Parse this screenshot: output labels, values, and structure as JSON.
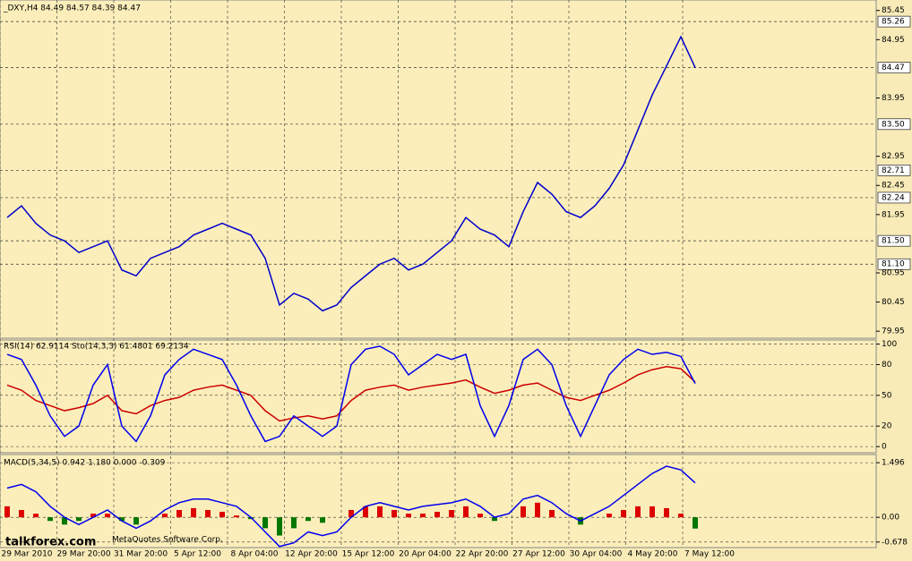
{
  "header": "_DXY,H4  84.49 84.57 84.39 84.47",
  "chart_data": [
    {
      "type": "line",
      "name": "price",
      "values": [
        81.9,
        82.1,
        81.8,
        81.6,
        81.5,
        81.3,
        81.4,
        81.5,
        81.0,
        80.9,
        81.2,
        81.3,
        81.4,
        81.6,
        81.7,
        81.8,
        81.7,
        81.6,
        81.2,
        80.4,
        80.6,
        80.5,
        80.3,
        80.4,
        80.7,
        80.9,
        81.1,
        81.2,
        81.0,
        81.1,
        81.3,
        81.5,
        81.9,
        81.7,
        81.6,
        81.4,
        82.0,
        82.5,
        82.3,
        82.0,
        81.9,
        82.1,
        82.4,
        82.8,
        83.4,
        84.0,
        84.5,
        85.0,
        84.47
      ],
      "color": "#0000cc",
      "ylim": [
        79.83,
        85.63
      ],
      "yticks": [
        85.45,
        84.95,
        83.95,
        82.95,
        82.45,
        81.95,
        80.95,
        80.45,
        79.95
      ],
      "level_lines": [
        85.26,
        84.47,
        {
          "value": 83.5,
          "label": "83.50"
        },
        82.71,
        82.24,
        {
          "value": 81.5,
          "label": "81.50"
        },
        {
          "value": 81.1,
          "label": "81.10"
        }
      ]
    },
    {
      "type": "line",
      "name": "oscillator",
      "title": "RSI(14) 62.9114  Sto(14,3,3) 61.4801 69.2134",
      "ylim": [
        -6,
        104
      ],
      "yticks": [
        100,
        80,
        50,
        20,
        0
      ],
      "series": [
        {
          "name": "RSI(14)",
          "color": "#cc0000",
          "values": [
            60,
            55,
            45,
            40,
            35,
            38,
            42,
            50,
            35,
            32,
            40,
            45,
            48,
            55,
            58,
            60,
            55,
            50,
            35,
            25,
            28,
            30,
            27,
            30,
            45,
            55,
            58,
            60,
            55,
            58,
            60,
            62,
            65,
            58,
            52,
            55,
            60,
            62,
            55,
            48,
            45,
            50,
            55,
            62,
            70,
            75,
            78,
            76,
            62.9
          ]
        },
        {
          "name": "Sto(14,3,3)",
          "color": "#0000ee",
          "values": [
            90,
            85,
            60,
            30,
            10,
            20,
            60,
            80,
            20,
            5,
            30,
            70,
            85,
            95,
            90,
            85,
            60,
            30,
            5,
            10,
            30,
            20,
            10,
            20,
            80,
            95,
            98,
            90,
            70,
            80,
            90,
            85,
            90,
            40,
            10,
            40,
            85,
            95,
            80,
            40,
            10,
            40,
            70,
            85,
            95,
            90,
            92,
            88,
            61.5
          ]
        }
      ]
    },
    {
      "type": "bar",
      "name": "macd",
      "title": "MACD(5,34,5) 0.942 1.180 0.000 -0.309",
      "ylim": [
        -0.83,
        1.72
      ],
      "yticks": [
        1.496,
        {
          "value": 0,
          "label": "0.00"
        },
        -0.678
      ],
      "values": [
        0.3,
        0.2,
        0.1,
        -0.1,
        -0.2,
        -0.1,
        0.1,
        0.1,
        -0.1,
        -0.2,
        0,
        0.1,
        0.2,
        0.25,
        0.2,
        0.15,
        0.05,
        -0.05,
        -0.3,
        -0.5,
        -0.3,
        -0.1,
        -0.15,
        0,
        0.2,
        0.3,
        0.3,
        0.2,
        0.1,
        0.1,
        0.15,
        0.2,
        0.3,
        0.1,
        -0.1,
        0,
        0.3,
        0.4,
        0.2,
        0,
        -0.2,
        0,
        0.1,
        0.2,
        0.3,
        0.3,
        0.25,
        0.1,
        -0.309
      ],
      "up_color": "#dd0000",
      "down_color": "#007700",
      "line": {
        "color": "#0000ee",
        "values": [
          0.8,
          0.9,
          0.7,
          0.3,
          0,
          -0.2,
          0,
          0.2,
          -0.1,
          -0.3,
          -0.1,
          0.2,
          0.4,
          0.5,
          0.5,
          0.4,
          0.3,
          0,
          -0.4,
          -0.8,
          -0.7,
          -0.4,
          -0.5,
          -0.4,
          0,
          0.3,
          0.4,
          0.3,
          0.2,
          0.3,
          0.35,
          0.4,
          0.5,
          0.3,
          0,
          0.1,
          0.5,
          0.6,
          0.4,
          0.1,
          -0.1,
          0.1,
          0.3,
          0.6,
          0.9,
          1.2,
          1.4,
          1.3,
          0.942
        ]
      }
    }
  ],
  "time_labels": [
    "29 Mar 2010",
    "29 Mar 20:00",
    "31 Mar 20:00",
    "5 Apr 12:00",
    "8 Apr 04:00",
    "12 Apr 20:00",
    "15 Apr 12:00",
    "20 Apr 04:00",
    "22 Apr 20:00",
    "27 Apr 12:00",
    "30 Apr 04:00",
    "4 May 20:00",
    "7 May 12:00"
  ],
  "watermark": "MetaQuotes Software Corp.",
  "site": "talkforex.com"
}
